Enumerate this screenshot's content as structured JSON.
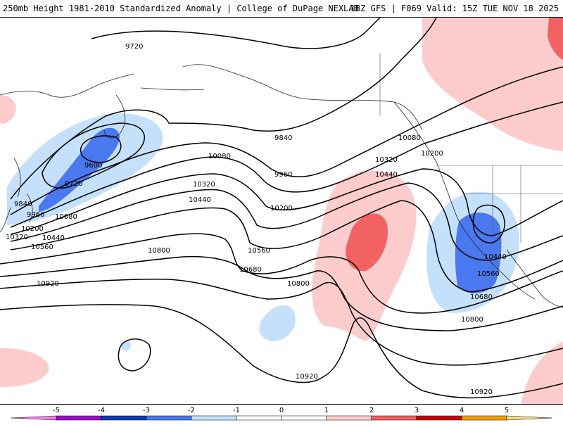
{
  "header": {
    "title": "250mb Height 1981-2010 Standardized Anomaly | College of DuPage NEXLAB",
    "run_info": "18Z GFS | F069 Valid: 15Z TUE NOV 18 2025"
  },
  "contour_labels": [
    {
      "text": "9720"
    },
    {
      "text": "9600"
    },
    {
      "text": "9720"
    },
    {
      "text": "9840"
    },
    {
      "text": "9960"
    },
    {
      "text": "10080"
    },
    {
      "text": "10200"
    },
    {
      "text": "10320"
    },
    {
      "text": "10440"
    },
    {
      "text": "10560"
    },
    {
      "text": "9840"
    },
    {
      "text": "9960"
    },
    {
      "text": "10080"
    },
    {
      "text": "10320"
    },
    {
      "text": "10440"
    },
    {
      "text": "10200"
    },
    {
      "text": "10560"
    },
    {
      "text": "10680"
    },
    {
      "text": "10800"
    },
    {
      "text": "10920"
    },
    {
      "text": "10800"
    },
    {
      "text": "10080"
    },
    {
      "text": "10200"
    },
    {
      "text": "10320"
    },
    {
      "text": "10440"
    },
    {
      "text": "10440"
    },
    {
      "text": "10560"
    },
    {
      "text": "10680"
    },
    {
      "text": "10800"
    },
    {
      "text": "10920"
    },
    {
      "text": "10920"
    }
  ],
  "legend": {
    "ticks": [
      "-5",
      "-4",
      "-3",
      "-2",
      "-1",
      "0",
      "1",
      "2",
      "3",
      "4",
      "5"
    ],
    "colors": [
      "#f080f0",
      "#9a10c8",
      "#0a3cb4",
      "#4a78ee",
      "#c4e0fa",
      "#ffffff",
      "#ffffff",
      "#fccccc",
      "#f26262",
      "#c80000",
      "#f5a000",
      "#f8e080"
    ]
  },
  "colors": {
    "neg_strong": "#4a78ee",
    "neg_light": "#c4e0fa",
    "pos_light": "#fccccc",
    "pos_strong": "#f26262"
  }
}
